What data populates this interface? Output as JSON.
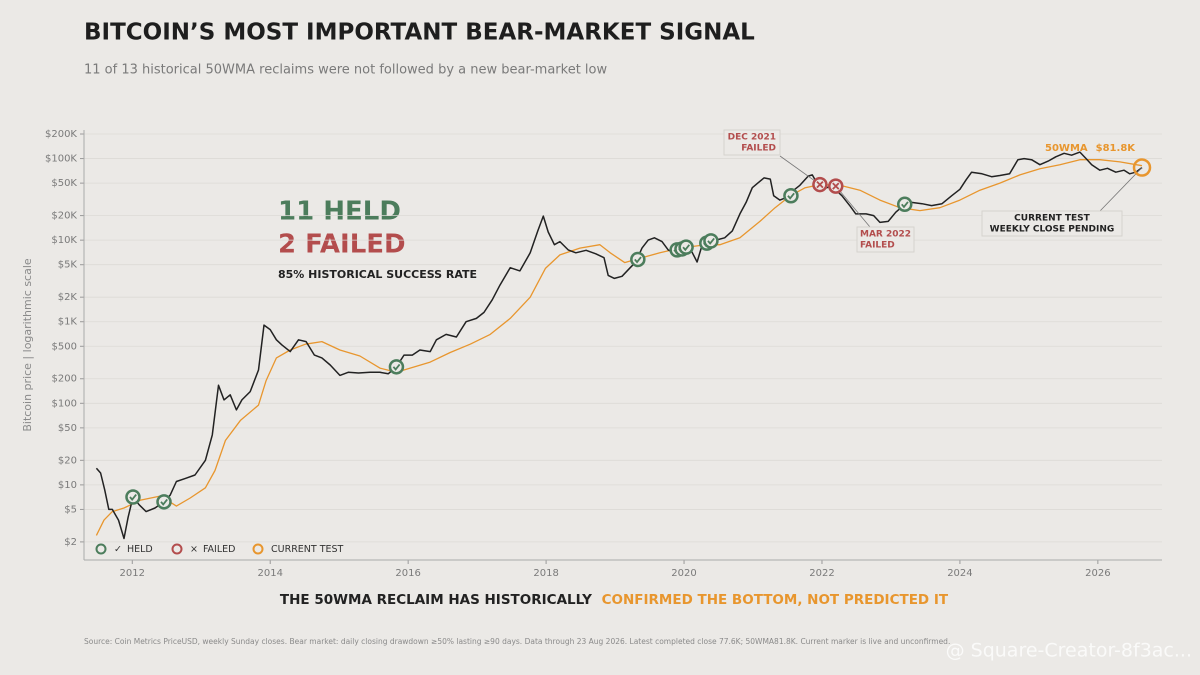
{
  "chart_data": {
    "type": "line",
    "title": "BITCOIN’S MOST IMPORTANT BEAR-MARKET SIGNAL",
    "subtitle": "11 of 13 historical 50WMA reclaims were not followed by a new bear-market low",
    "y_label": "Bitcoin price  |  logarithmic scale",
    "log_y": true,
    "grid": true,
    "xlim": [
      2011.3,
      2026.93
    ],
    "xticks": [
      2012,
      2014,
      2016,
      2018,
      2020,
      2022,
      2024,
      2026
    ],
    "ylim": [
      1.2,
      224000
    ],
    "yticks": [
      {
        "value": 2,
        "label": "$2"
      },
      {
        "value": 5,
        "label": "$5"
      },
      {
        "value": 10,
        "label": "$10"
      },
      {
        "value": 20,
        "label": "$20"
      },
      {
        "value": 50,
        "label": "$50"
      },
      {
        "value": 100,
        "label": "$100"
      },
      {
        "value": 200,
        "label": "$200"
      },
      {
        "value": 500,
        "label": "$500"
      },
      {
        "value": 1000,
        "label": "$1K"
      },
      {
        "value": 2000,
        "label": "$2K"
      },
      {
        "value": 5000,
        "label": "$5K"
      },
      {
        "value": 10000,
        "label": "$10K"
      },
      {
        "value": 20000,
        "label": "$20K"
      },
      {
        "value": 50000,
        "label": "$50K"
      },
      {
        "value": 100000,
        "label": "$100K"
      },
      {
        "value": 200000,
        "label": "$200K"
      }
    ],
    "series": [
      {
        "color": "#222222",
        "x": [
          2011.48,
          2011.54,
          2011.6,
          2011.66,
          2011.71,
          2011.8,
          2011.88,
          2011.94,
          2012.01,
          2012.1,
          2012.2,
          2012.33,
          2012.46,
          2012.55,
          2012.64,
          2012.77,
          2012.91,
          2013.06,
          2013.16,
          2013.25,
          2013.33,
          2013.42,
          2013.51,
          2013.59,
          2013.71,
          2013.83,
          2013.91,
          2014.0,
          2014.09,
          2014.17,
          2014.29,
          2014.41,
          2014.52,
          2014.64,
          2014.75,
          2014.87,
          2015.01,
          2015.13,
          2015.28,
          2015.45,
          2015.59,
          2015.71,
          2015.83,
          2015.94,
          2016.06,
          2016.17,
          2016.32,
          2016.41,
          2016.55,
          2016.7,
          2016.84,
          2016.99,
          2017.1,
          2017.22,
          2017.33,
          2017.48,
          2017.62,
          2017.77,
          2017.88,
          2017.96,
          2018.03,
          2018.12,
          2018.2,
          2018.32,
          2018.43,
          2018.58,
          2018.72,
          2018.84,
          2018.9,
          2018.99,
          2019.1,
          2019.22,
          2019.3,
          2019.39,
          2019.48,
          2019.57,
          2019.68,
          2019.77,
          2019.86,
          2019.94,
          2020.06,
          2020.19,
          2020.26,
          2020.35,
          2020.46,
          2020.59,
          2020.7,
          2020.81,
          2020.9,
          2020.99,
          2021.07,
          2021.16,
          2021.25,
          2021.3,
          2021.39,
          2021.51,
          2021.59,
          2021.68,
          2021.8,
          2021.86,
          2021.94,
          2022.06,
          2022.14,
          2022.29,
          2022.41,
          2022.49,
          2022.64,
          2022.75,
          2022.84,
          2022.96,
          2023.07,
          2023.19,
          2023.3,
          2023.45,
          2023.59,
          2023.74,
          2023.88,
          2024.0,
          2024.09,
          2024.17,
          2024.32,
          2024.46,
          2024.58,
          2024.72,
          2024.84,
          2024.93,
          2025.04,
          2025.16,
          2025.28,
          2025.39,
          2025.51,
          2025.62,
          2025.74,
          2025.83,
          2025.91,
          2026.03,
          2026.14,
          2026.26,
          2026.38,
          2026.46,
          2026.55,
          2026.64
        ],
        "values": [
          16,
          14,
          8.7,
          5,
          5,
          3.7,
          2.2,
          4,
          7.1,
          5.7,
          4.7,
          5.2,
          6.2,
          7.5,
          11,
          12,
          13.2,
          20,
          41,
          166,
          110,
          127,
          83,
          110,
          139,
          256,
          909,
          800,
          600,
          520,
          430,
          600,
          570,
          390,
          360,
          295,
          220,
          240,
          235,
          240,
          240,
          230,
          280,
          390,
          390,
          450,
          430,
          600,
          700,
          650,
          1000,
          1100,
          1300,
          1860,
          2800,
          4600,
          4200,
          7000,
          13000,
          19700,
          12600,
          8800,
          9600,
          7600,
          7000,
          7500,
          6800,
          6100,
          3700,
          3400,
          3600,
          4600,
          5400,
          8000,
          10000,
          10700,
          9600,
          7600,
          7000,
          8000,
          8800,
          5400,
          8600,
          9600,
          10000,
          10700,
          13000,
          21000,
          29000,
          44000,
          50000,
          58000,
          56000,
          35000,
          31000,
          34000,
          41000,
          47000,
          61000,
          63000,
          48000,
          43700,
          46000,
          35000,
          26000,
          21000,
          21000,
          20000,
          16500,
          17000,
          22000,
          27000,
          29000,
          28000,
          26500,
          28000,
          35000,
          42000,
          55000,
          68000,
          65000,
          60000,
          62000,
          65000,
          97000,
          100000,
          97000,
          84000,
          93000,
          105000,
          116000,
          110000,
          120000,
          100000,
          84000,
          72000,
          76000,
          68000,
          72000,
          65000,
          68000,
          77600
        ]
      },
      {
        "name": "50WMA",
        "color": "#e8962e",
        "end_label": "$81.8K",
        "x": [
          2011.48,
          2011.59,
          2011.71,
          2011.88,
          2012.12,
          2012.41,
          2012.64,
          2012.84,
          2013.06,
          2013.2,
          2013.35,
          2013.57,
          2013.83,
          2013.94,
          2014.09,
          2014.29,
          2014.51,
          2014.75,
          2015.01,
          2015.3,
          2015.59,
          2015.83,
          2016.03,
          2016.32,
          2016.61,
          2016.9,
          2017.19,
          2017.48,
          2017.77,
          2017.99,
          2018.2,
          2018.49,
          2018.78,
          2018.93,
          2019.14,
          2019.36,
          2019.65,
          2019.94,
          2020.23,
          2020.52,
          2020.81,
          2021.1,
          2021.32,
          2021.54,
          2021.75,
          2021.97,
          2022.26,
          2022.55,
          2022.84,
          2023.13,
          2023.42,
          2023.71,
          2024.0,
          2024.29,
          2024.58,
          2024.87,
          2025.16,
          2025.45,
          2025.74,
          2026.03,
          2026.32,
          2026.64
        ],
        "values": [
          2.4,
          3.7,
          4.7,
          5.2,
          6.5,
          7.3,
          5.5,
          6.9,
          9.2,
          15,
          35,
          62,
          95,
          190,
          360,
          450,
          530,
          570,
          450,
          380,
          270,
          240,
          270,
          320,
          420,
          530,
          700,
          1100,
          2000,
          4500,
          6600,
          8000,
          8800,
          7000,
          5300,
          6000,
          7000,
          8000,
          8600,
          8800,
          10700,
          17000,
          25000,
          35000,
          43700,
          48000,
          47000,
          41000,
          31000,
          25000,
          23000,
          25000,
          31000,
          41000,
          50000,
          63000,
          75000,
          84000,
          97000,
          97000,
          91000,
          81800
        ]
      }
    ],
    "markers": [
      {
        "name": "HELD",
        "symbol": "✓",
        "color": "#4c7d5c",
        "x": [
          2012.01,
          2012.46,
          2015.83,
          2019.33,
          2019.9,
          2019.97,
          2020.03,
          2020.33,
          2020.39,
          2021.55,
          2023.2
        ],
        "values": [
          7.1,
          6.2,
          280,
          5800,
          7600,
          7800,
          8200,
          9200,
          9800,
          35000,
          27500
        ]
      },
      {
        "name": "FAILED",
        "symbol": "×",
        "color": "#b34d4d",
        "x": [
          2021.97,
          2022.2
        ],
        "values": [
          48000,
          46000
        ],
        "labels": [
          [
            "DEC 2021",
            "FAILED"
          ],
          [
            "MAR 2022",
            "FAILED"
          ]
        ]
      },
      {
        "name": "CURRENT TEST",
        "color": "#e8962e",
        "x": [
          2026.64
        ],
        "values": [
          77600
        ],
        "labels": [
          [
            "CURRENT TEST",
            "WEEKLY CLOSE PENDING"
          ]
        ]
      }
    ],
    "headline": {
      "held": "11 HELD",
      "failed": "2 FAILED",
      "rate": "85% HISTORICAL SUCCESS RATE"
    },
    "takeaway": [
      "THE 50WMA RECLAIM HAS HISTORICALLY",
      "CONFIRMED THE BOTTOM, NOT PREDICTED IT"
    ],
    "source": "Source: Coin Metrics PriceUSD, weekly Sunday closes. Bear market: daily closing drawdown ≥50% lasting ≥90 days. Data through 23 Aug 2026. Latest completed close 77.6K; 50WMA81.8K. Current marker is live and unconfirmed.",
    "watermark": "@ Square-Creator-8f3ac..."
  }
}
